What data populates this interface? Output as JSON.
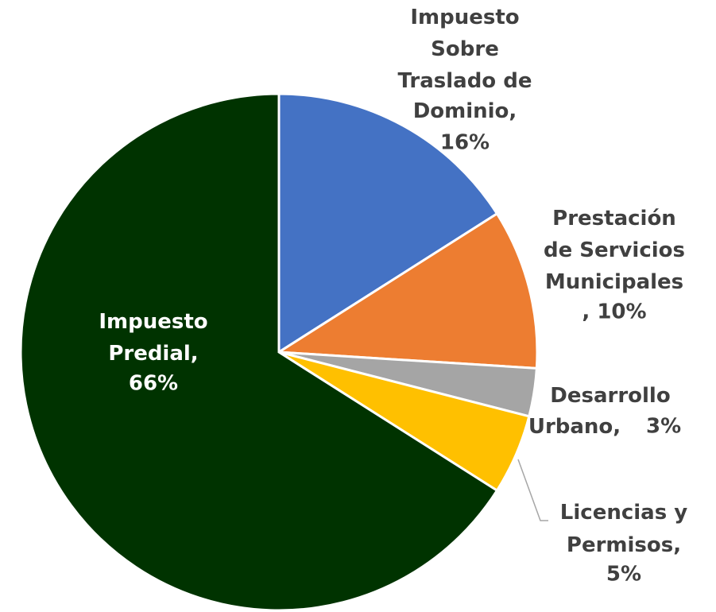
{
  "chart_data": {
    "type": "pie",
    "categories": [
      "Impuesto Sobre Traslado de Dominio,",
      "Prestación de Servicios Municipales",
      "Desarrollo Urbano,",
      "Licencias y Permisos,",
      "Impuesto Predial,"
    ],
    "values": [
      16,
      10,
      3,
      5,
      66
    ],
    "value_labels": [
      "16%",
      ", 10%",
      "3%",
      "5%",
      "66%"
    ],
    "colors": [
      "#4472c4",
      "#ed7d31",
      "#a5a5a5",
      "#ffc000",
      "#003300"
    ]
  }
}
